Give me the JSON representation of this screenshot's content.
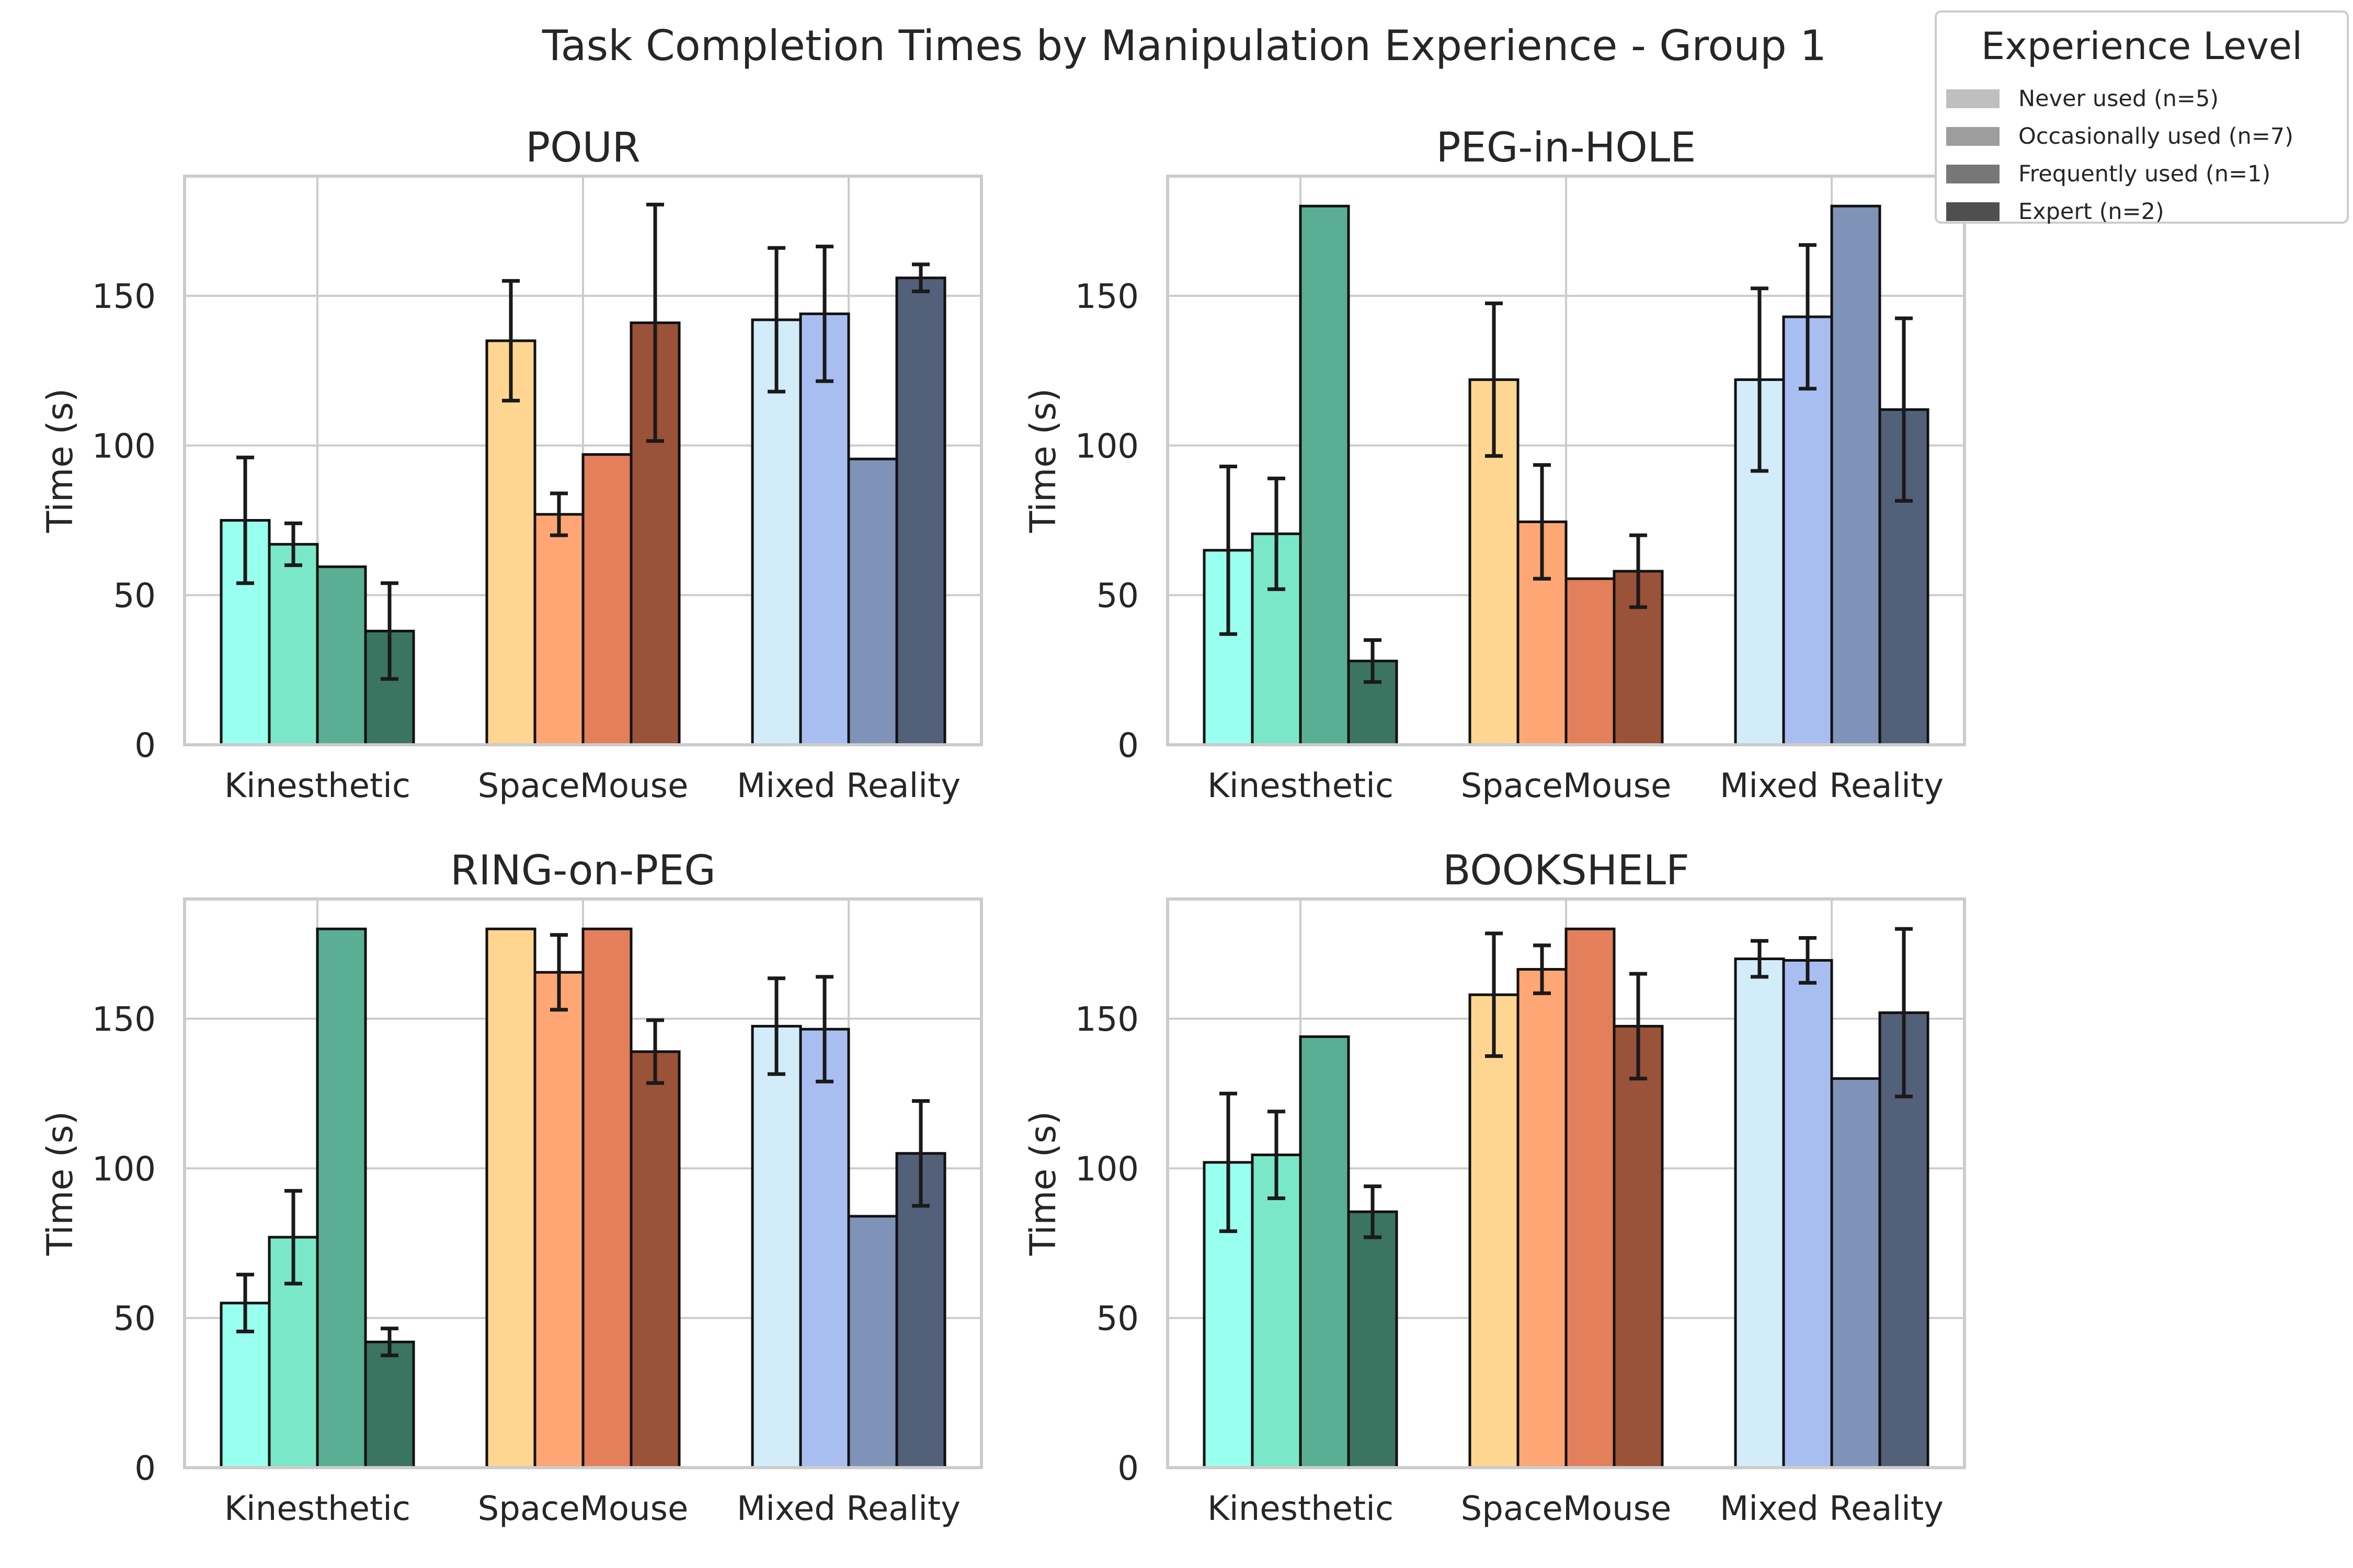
{
  "chart_data": {
    "type": "bar",
    "title": "Task Completion Times by Manipulation Experience - Group 1",
    "ylabel": "Time (s)",
    "ylim": [
      0,
      190
    ],
    "yticks": [
      0,
      50,
      100,
      150
    ],
    "categories": [
      "Kinesthetic",
      "SpaceMouse",
      "Mixed Reality"
    ],
    "grid": true,
    "legend": {
      "title": "Experience Level",
      "placement": "top-right",
      "entries": [
        "Never used (n=5)",
        "Occasionally used (n=7)",
        "Frequently used (n=1)",
        "Expert (n=2)"
      ],
      "colors": [
        "#bfbfbf",
        "#9e9e9e",
        "#777777",
        "#4f4f4f"
      ]
    },
    "interface_colors": {
      "Kinesthetic": [
        "#99ffee",
        "#7ae8c8",
        "#5aae93",
        "#3b7461"
      ],
      "SpaceMouse": [
        "#ffd592",
        "#fea774",
        "#e37f5a",
        "#9a5239"
      ],
      "Mixed Reality": [
        "#d2ecfa",
        "#a8bef0",
        "#7f92b8",
        "#536079"
      ]
    },
    "panels": [
      {
        "title": "POUR",
        "series": [
          {
            "name": "Never used (n=5)",
            "values": [
              75,
              135,
              142
            ],
            "errors": [
              21,
              20,
              24
            ]
          },
          {
            "name": "Occasionally used (n=7)",
            "values": [
              67,
              77,
              144
            ],
            "errors": [
              7,
              7,
              22.5
            ]
          },
          {
            "name": "Frequently used (n=1)",
            "values": [
              59.5,
              97,
              95.5
            ],
            "errors": [
              null,
              null,
              null
            ]
          },
          {
            "name": "Expert (n=2)",
            "values": [
              38,
              141,
              156
            ],
            "errors": [
              16,
              39.5,
              4.5
            ]
          }
        ]
      },
      {
        "title": "PEG-in-HOLE",
        "series": [
          {
            "name": "Never used (n=5)",
            "values": [
              65,
              122,
              122
            ],
            "errors": [
              28,
              25.5,
              30.5
            ]
          },
          {
            "name": "Occasionally used (n=7)",
            "values": [
              70.5,
              74.5,
              143
            ],
            "errors": [
              18.5,
              19,
              24
            ]
          },
          {
            "name": "Frequently used (n=1)",
            "values": [
              180,
              55.5,
              180
            ],
            "errors": [
              null,
              null,
              null
            ]
          },
          {
            "name": "Expert (n=2)",
            "values": [
              28,
              58,
              112
            ],
            "errors": [
              7,
              12,
              30.5
            ]
          }
        ]
      },
      {
        "title": "RING-on-PEG",
        "series": [
          {
            "name": "Never used (n=5)",
            "values": [
              55,
              180,
              147.5
            ],
            "errors": [
              9.5,
              null,
              16
            ]
          },
          {
            "name": "Occasionally used (n=7)",
            "values": [
              77,
              165.5,
              146.5
            ],
            "errors": [
              15.5,
              12.5,
              17.5
            ]
          },
          {
            "name": "Frequently used (n=1)",
            "values": [
              180,
              180,
              84
            ],
            "errors": [
              null,
              null,
              null
            ]
          },
          {
            "name": "Expert (n=2)",
            "values": [
              42,
              139,
              105
            ],
            "errors": [
              4.5,
              10.5,
              17.5
            ]
          }
        ]
      },
      {
        "title": "BOOKSHELF",
        "series": [
          {
            "name": "Never used (n=5)",
            "values": [
              102,
              158,
              170
            ],
            "errors": [
              23,
              20.5,
              6
            ]
          },
          {
            "name": "Occasionally used (n=7)",
            "values": [
              104.5,
              166.5,
              169.5
            ],
            "errors": [
              14.5,
              8,
              7.5
            ]
          },
          {
            "name": "Frequently used (n=1)",
            "values": [
              144,
              180,
              130
            ],
            "errors": [
              null,
              null,
              null
            ]
          },
          {
            "name": "Expert (n=2)",
            "values": [
              85.5,
              147.5,
              152
            ],
            "errors": [
              8.5,
              17.5,
              28
            ]
          }
        ]
      }
    ]
  }
}
